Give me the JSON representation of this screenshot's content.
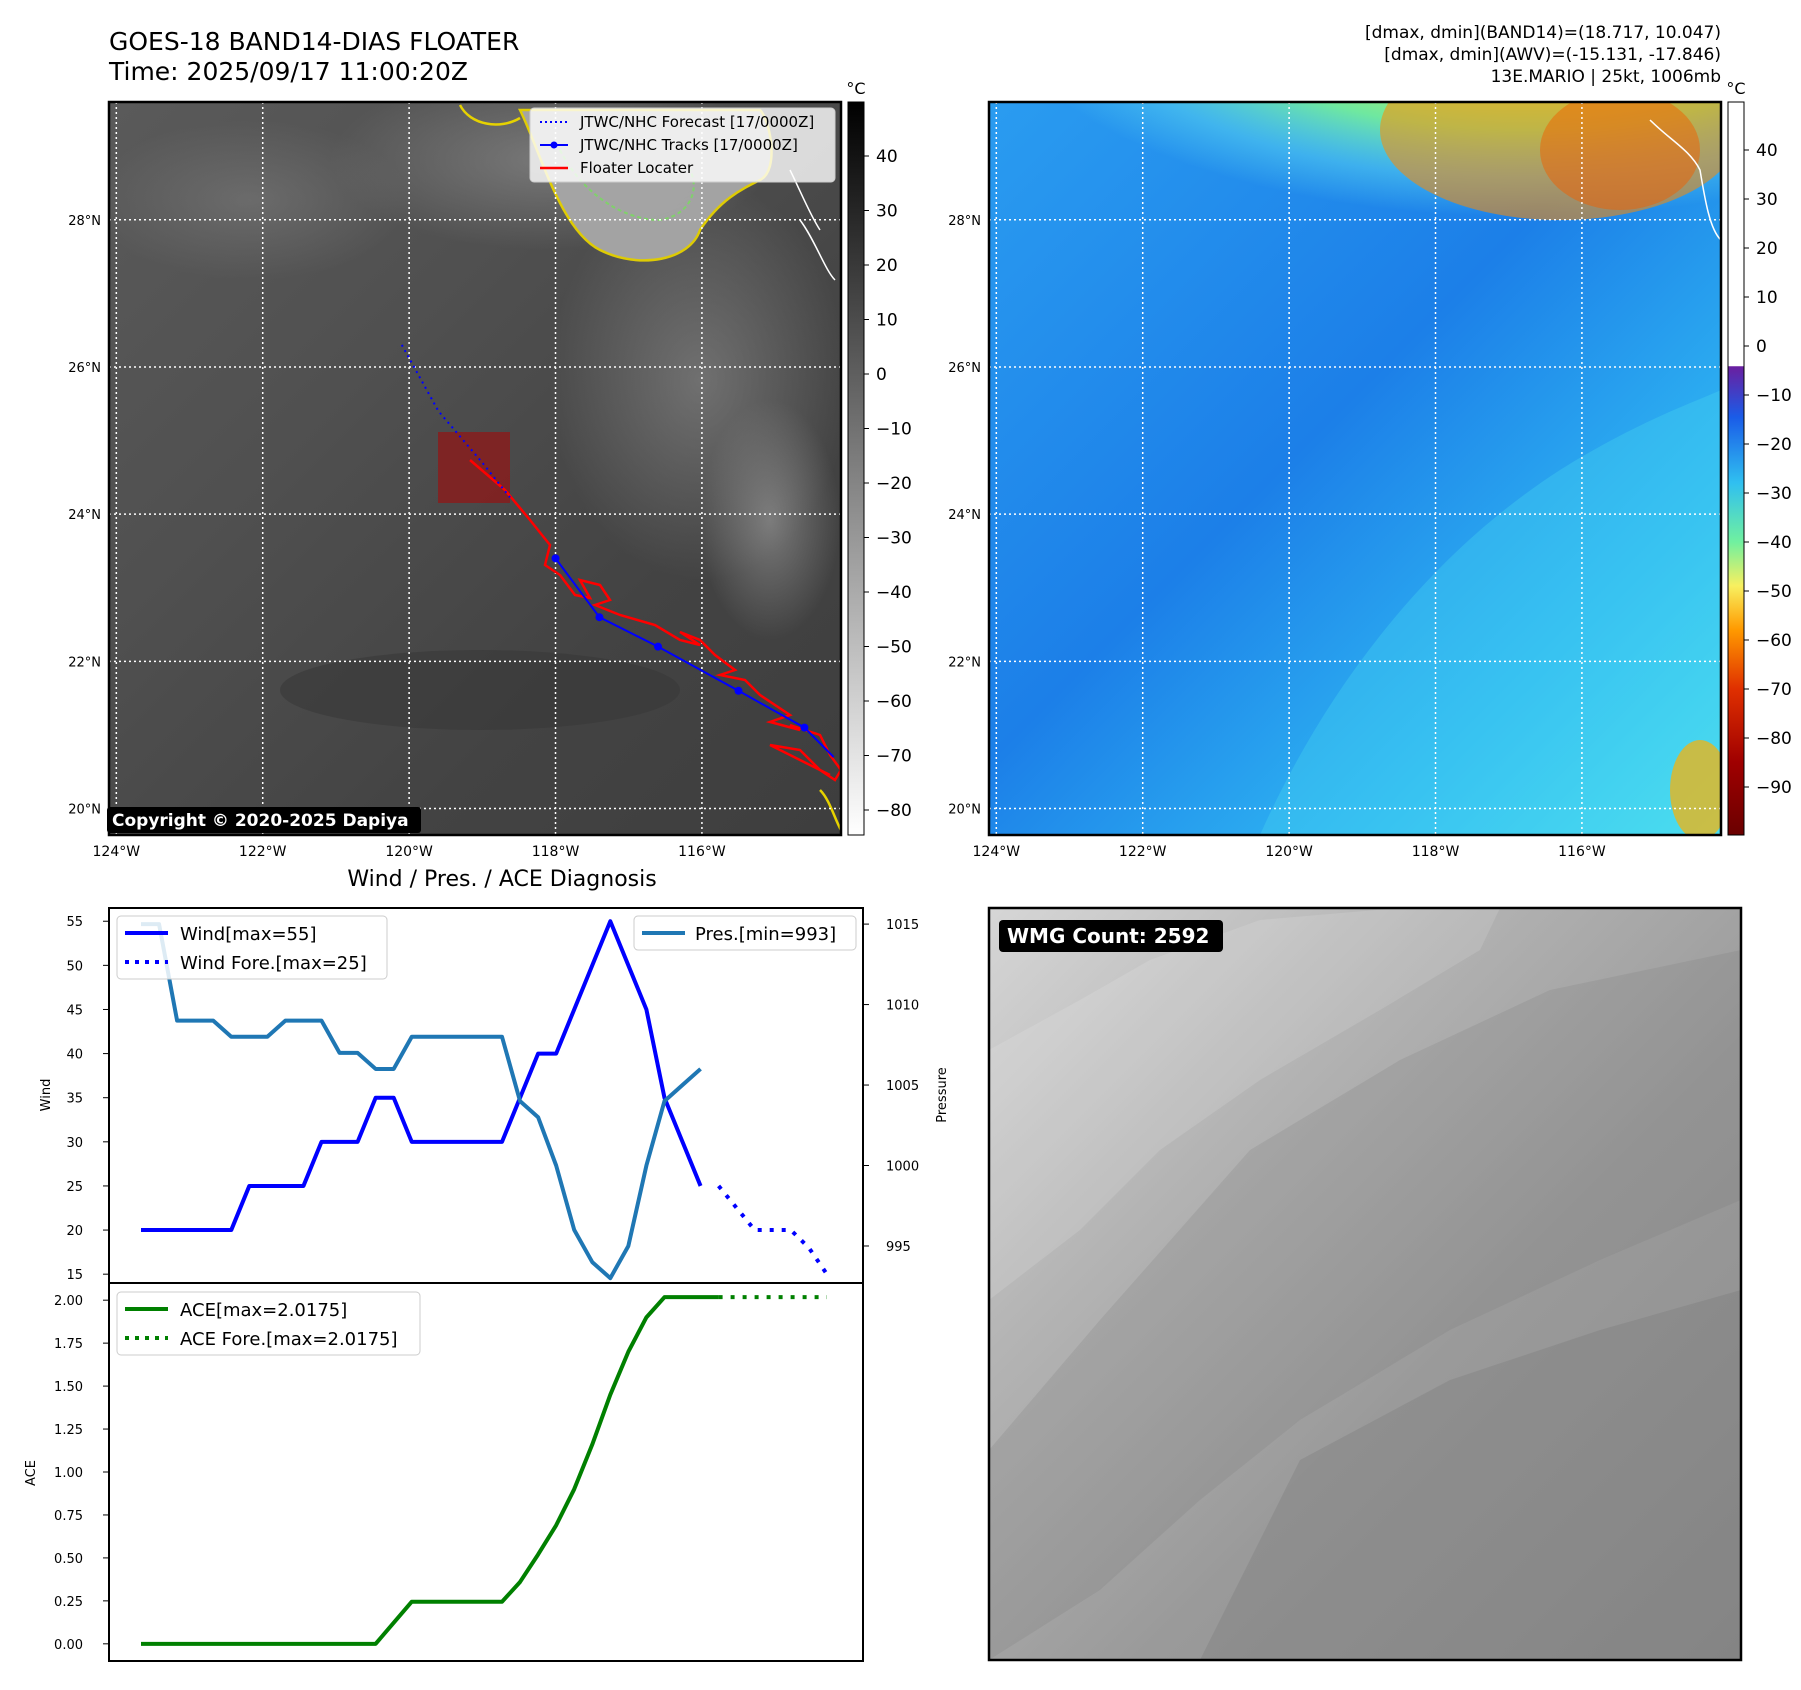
{
  "header": {
    "title": "GOES-18 BAND14-DIAS FLOATER",
    "time": "Time: 2025/09/17 11:00:20Z",
    "dmax_band14": "[dmax, dmin](BAND14)=(18.717, 10.047)",
    "dmax_awv": "[dmax, dmin](AWV)=(-15.131, -17.846)",
    "storm": "13E.MARIO | 25kt, 1006mb"
  },
  "map_axes": {
    "lat_labels": [
      "28°N",
      "26°N",
      "24°N",
      "22°N",
      "20°N"
    ],
    "lon_labels": [
      "124°W",
      "122°W",
      "120°W",
      "118°W",
      "116°W"
    ],
    "lat_values": [
      28,
      26,
      24,
      22,
      20
    ],
    "lon_values": [
      -124,
      -122,
      -120,
      -118,
      -116
    ]
  },
  "ir_panel": {
    "legend": {
      "forecast": "JTWC/NHC Forecast [17/0000Z]",
      "tracks": "JTWC/NHC Tracks [17/0000Z]",
      "locater": "Floater Locater"
    },
    "copyright": "Copyright © 2020-2025 Dapiya",
    "colorbar_unit": "°C",
    "colorbar_ticks": [
      "40",
      "30",
      "20",
      "10",
      "0",
      "−10",
      "−20",
      "−30",
      "−40",
      "−50",
      "−60",
      "−70",
      "−80"
    ],
    "track_points": [
      [
        -118.0,
        23.4
      ],
      [
        -117.4,
        22.6
      ],
      [
        -116.6,
        22.2
      ],
      [
        -115.5,
        21.6
      ],
      [
        -114.6,
        21.1
      ],
      [
        -114.2,
        20.7
      ]
    ],
    "forecast_points": [
      [
        -120.1,
        26.3
      ],
      [
        -119.6,
        25.4
      ],
      [
        -119.0,
        24.7
      ],
      [
        -118.6,
        24.2
      ]
    ],
    "colors": {
      "forecast": "#0000ff",
      "track": "#0000ff",
      "locater": "#ff0000",
      "box": "#8b1a1a"
    }
  },
  "wv_panel": {
    "colorbar_unit": "°C",
    "colorbar_ticks": [
      "40",
      "30",
      "20",
      "10",
      "0",
      "−10",
      "−20",
      "−30",
      "−40",
      "−50",
      "−60",
      "−70",
      "−80",
      "−90"
    ]
  },
  "wmg_panel": {
    "label": "WMG Count: 2592"
  },
  "chart_data": [
    {
      "type": "line",
      "title": "Wind / Pres. / ACE Diagnosis",
      "ylabel": "Wind",
      "y2label": "Pressure",
      "ylim": [
        14,
        56.5
      ],
      "y2lim": [
        992.7,
        1016
      ],
      "yticks": [
        "15",
        "20",
        "25",
        "30",
        "35",
        "40",
        "45",
        "50",
        "55"
      ],
      "y2ticks": [
        "995",
        "1000",
        "1005",
        "1010",
        "1015"
      ],
      "x": [
        0,
        1,
        2,
        3,
        4,
        5,
        6,
        7,
        8,
        9,
        10,
        11,
        12,
        13,
        14,
        15,
        16,
        17,
        18,
        19,
        20,
        21,
        22,
        23,
        24,
        25,
        26,
        27,
        28,
        29,
        30,
        31,
        32
      ],
      "series": [
        {
          "name": "Wind[max=55]",
          "color": "#0000ff",
          "style": "solid",
          "values": [
            20,
            20,
            20,
            20,
            20,
            20,
            25,
            25,
            25,
            25,
            30,
            30,
            30,
            35,
            35,
            30,
            30,
            30,
            30,
            30,
            30,
            35,
            40,
            40,
            45,
            50,
            55,
            50,
            45,
            35,
            30,
            25,
            null
          ]
        },
        {
          "name": "Wind Fore.[max=25]",
          "color": "#0000ff",
          "style": "dotted",
          "x": [
            32,
            33,
            34,
            35,
            36,
            37,
            38
          ],
          "values": [
            25,
            22.5,
            20,
            20,
            20,
            18,
            15
          ]
        },
        {
          "name": "Pres.[min=993]",
          "color": "#1f77b4",
          "style": "solid",
          "axis": "right",
          "values": [
            1015,
            1015,
            1009,
            1009,
            1009,
            1008,
            1008,
            1008,
            1009,
            1009,
            1009,
            1007,
            1007,
            1006,
            1006,
            1008,
            1008,
            1008,
            1008,
            1008,
            1008,
            1004,
            1003,
            1000,
            996,
            994,
            993,
            995,
            1000,
            1004,
            1005,
            1006,
            null
          ]
        }
      ],
      "legend_left": [
        "Wind[max=55]",
        "Wind Fore.[max=25]"
      ],
      "legend_right": [
        "Pres.[min=993]"
      ]
    },
    {
      "type": "line",
      "ylabel": "ACE",
      "ylim": [
        -0.1,
        2.1
      ],
      "yticks": [
        "0.00",
        "0.25",
        "0.50",
        "0.75",
        "1.00",
        "1.25",
        "1.50",
        "1.75",
        "2.00"
      ],
      "series": [
        {
          "name": "ACE[max=2.0175]",
          "color": "#008000",
          "style": "solid",
          "x": [
            0,
            13,
            15,
            20,
            21,
            22,
            23,
            24,
            25,
            26,
            27,
            28,
            29,
            30,
            31,
            32
          ],
          "values": [
            0,
            0,
            0.245,
            0.245,
            0.36,
            0.52,
            0.69,
            0.9,
            1.16,
            1.45,
            1.7,
            1.9,
            2.0175,
            2.0175,
            2.0175,
            2.0175
          ]
        },
        {
          "name": "ACE Fore.[max=2.0175]",
          "color": "#008000",
          "style": "dotted",
          "x": [
            32,
            38
          ],
          "values": [
            2.0175,
            2.0175
          ]
        }
      ]
    }
  ]
}
